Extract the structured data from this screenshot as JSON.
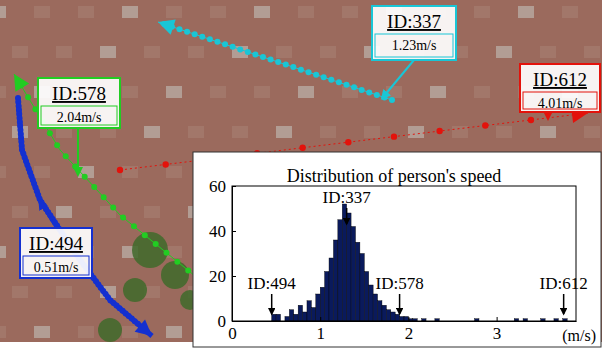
{
  "chart_data": {
    "type": "histogram",
    "title": "Distribution of person's speed",
    "x_label": "(m/s)",
    "bins": [
      0,
      0.05,
      0.1,
      0.15,
      0.2,
      0.25,
      0.3,
      0.35,
      0.4,
      0.45,
      0.5,
      0.55,
      0.6,
      0.65,
      0.7,
      0.75,
      0.8,
      0.85,
      0.9,
      0.95,
      1,
      1.05,
      1.1,
      1.15,
      1.2,
      1.25,
      1.3,
      1.35,
      1.4,
      1.45,
      1.5,
      1.55,
      1.6,
      1.65,
      1.7,
      1.75,
      1.8,
      1.85,
      1.9,
      1.95,
      2,
      2.05,
      2.1,
      2.15,
      2.2,
      2.25,
      2.3,
      2.35,
      2.4,
      2.45,
      2.5,
      2.55,
      2.6,
      2.65,
      2.7,
      2.75,
      2.8,
      2.85,
      2.9,
      2.95,
      3,
      3.05,
      3.1,
      3.15,
      3.2,
      3.25,
      3.3,
      3.35,
      3.4,
      3.45,
      3.5,
      3.55,
      3.6,
      3.65,
      3.7,
      3.75,
      3.8,
      3.85,
      3.9
    ],
    "values": [
      0,
      0,
      0,
      0,
      0,
      0,
      0,
      0,
      0,
      3,
      3,
      0,
      2,
      5,
      3,
      7,
      4,
      9,
      6,
      12,
      15,
      22,
      28,
      36,
      45,
      52,
      48,
      42,
      35,
      30,
      22,
      16,
      12,
      9,
      7,
      5,
      4,
      3,
      2,
      2,
      1,
      1,
      0,
      1,
      0,
      0,
      1,
      0,
      0,
      0,
      0,
      0,
      0,
      0,
      0,
      1,
      0,
      0,
      0,
      0,
      0,
      0,
      0,
      0,
      1,
      0,
      1,
      0,
      0,
      0,
      1,
      0,
      0,
      1,
      0,
      1,
      0,
      0
    ],
    "color": "#0a1a5c",
    "xlim": [
      0,
      3.9
    ],
    "xticks": [
      0,
      1,
      2,
      3
    ],
    "ylim": [
      0,
      60
    ],
    "yticks": [
      0,
      20,
      40,
      60
    ],
    "annotations": [
      {
        "text": "ID:494",
        "x": 0.45
      },
      {
        "text": "ID:337",
        "x": 1.3
      },
      {
        "text": "ID:578",
        "x": 1.9
      },
      {
        "text": "ID:612",
        "x": 3.76
      }
    ]
  },
  "scene": {
    "tracks": [
      {
        "label": "ID:337",
        "speed": "1.23m/s",
        "color": "#19c6d6"
      },
      {
        "label": "ID:612",
        "speed": "4.01m/s",
        "color": "#e3120b"
      },
      {
        "label": "ID:578",
        "speed": "2.04m/s",
        "color": "#22cc22"
      },
      {
        "label": "ID:494",
        "speed": "0.51m/s",
        "color": "#1430d0"
      }
    ]
  }
}
